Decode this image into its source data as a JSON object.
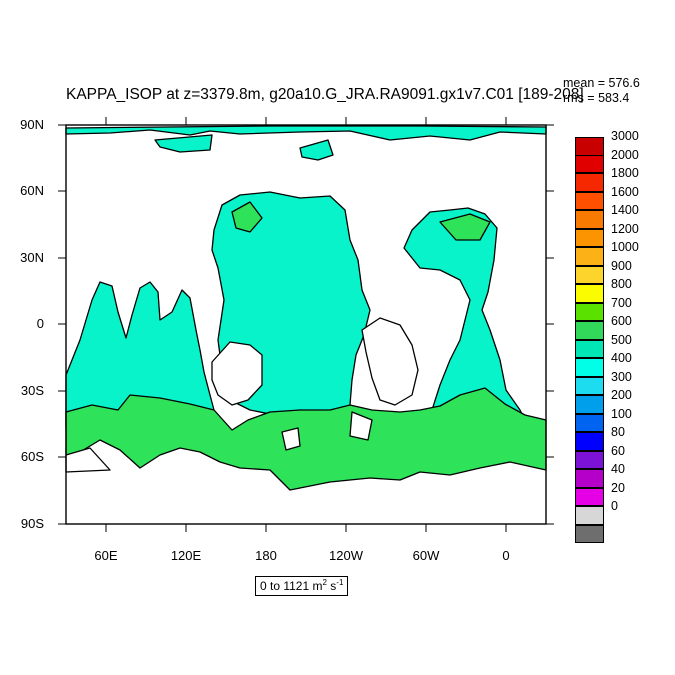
{
  "title": "KAPPA_ISOP at z=3379.8m, g20a10.G_JRA.RA9091.gx1v7.C01 [189-208]",
  "stats": {
    "mean": "mean = 576.6",
    "rms": "rms = 583.4"
  },
  "y_axis_labels": [
    "90N",
    "60N",
    "30N",
    "0",
    "30S",
    "60S",
    "90S"
  ],
  "x_axis_labels": [
    "60E",
    "120E",
    "180",
    "120W",
    "60W",
    "0"
  ],
  "range_label": {
    "text": "0 to 1121 m",
    "sup1": "2",
    "mid": " s",
    "sup2": "-1"
  },
  "colorbar": {
    "labels": [
      "3000",
      "2000",
      "1800",
      "1600",
      "1400",
      "1200",
      "1000",
      "900",
      "800",
      "700",
      "600",
      "500",
      "400",
      "300",
      "200",
      "100",
      "80",
      "60",
      "40",
      "20",
      "0"
    ],
    "colors": [
      "#c80000",
      "#e00000",
      "#f52800",
      "#ff5000",
      "#f87a00",
      "#fb9400",
      "#fcb216",
      "#fcd42c",
      "#fcfc00",
      "#5ae100",
      "#31d85a",
      "#00e6b4",
      "#00ffe6",
      "#1edcf0",
      "#009fec",
      "#0064f0",
      "#0000ff",
      "#7b12d6",
      "#b400c8",
      "#e600e6",
      "#d7d7d7",
      "#6e6e6e"
    ]
  },
  "colors": {
    "ocean_fill": "#08f3c9",
    "band_fill": "#2ee25a",
    "coast": "#000000"
  }
}
